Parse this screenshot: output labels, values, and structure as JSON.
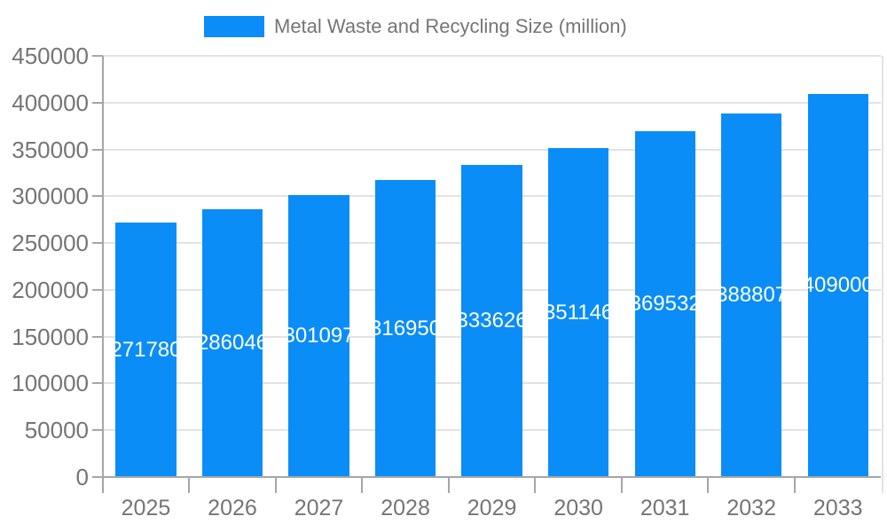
{
  "chart_data": {
    "type": "bar",
    "title": "Metal Waste and Recycling Size (million)",
    "legend": {
      "label": "Metal Waste and Recycling Size (million)",
      "position": "top"
    },
    "categories": [
      "2025",
      "2026",
      "2027",
      "2028",
      "2029",
      "2030",
      "2031",
      "2032",
      "2033"
    ],
    "values": [
      271780,
      286046,
      301097,
      316950,
      333626,
      351146,
      369532,
      388807,
      409000
    ],
    "bar_value_labels_visible": true,
    "xlabel": "",
    "ylabel": "",
    "ylim": [
      0,
      450000
    ],
    "yticks": [
      0,
      50000,
      100000,
      150000,
      200000,
      250000,
      300000,
      350000,
      400000,
      450000
    ],
    "grid": true,
    "colors": {
      "bar": "#0b8df8",
      "bar_label": "#ffffff",
      "axis_text": "#757575",
      "grid_line": "#e3e3e3",
      "axis_line": "#a6a6a6",
      "background": "#ffffff"
    }
  }
}
